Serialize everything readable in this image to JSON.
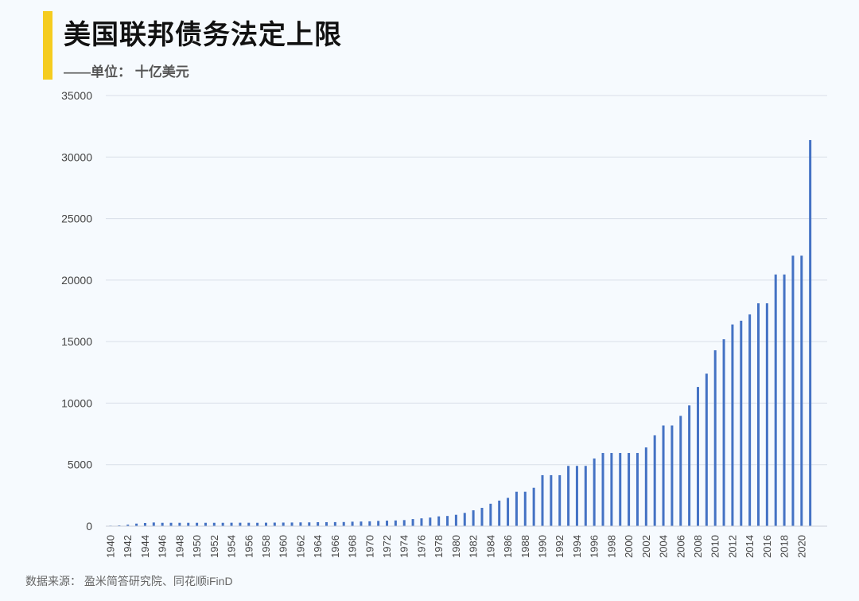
{
  "header": {
    "title": "美国联邦债务法定上限",
    "subtitle": "——单位： 十亿美元"
  },
  "footer": {
    "source": "数据来源： 盈米简答研究院、同花顺iFinD"
  },
  "colors": {
    "accent": "#f5cc1f",
    "bar": "#4472c4",
    "grid": "#d9dfe8"
  },
  "chart_data": {
    "type": "bar",
    "title": "美国联邦债务法定上限",
    "subtitle": "——单位： 十亿美元",
    "ylim": [
      0,
      35000
    ],
    "yticks": [
      0,
      5000,
      10000,
      15000,
      20000,
      25000,
      30000,
      35000
    ],
    "xticks": [
      "1940",
      "1942",
      "1944",
      "1946",
      "1948",
      "1950",
      "1952",
      "1954",
      "1956",
      "1958",
      "1960",
      "1962",
      "1964",
      "1966",
      "1968",
      "1970",
      "1972",
      "1974",
      "1976",
      "1978",
      "1980",
      "1982",
      "1984",
      "1986",
      "1988",
      "1990",
      "1992",
      "1994",
      "1996",
      "1998",
      "2000",
      "2002",
      "2004",
      "2006",
      "2008",
      "2010",
      "2012",
      "2014",
      "2016",
      "2018",
      "2020"
    ],
    "grid": true,
    "legend": "none",
    "categories": [
      "1940",
      "1941",
      "1942",
      "1943",
      "1944",
      "1945",
      "1946",
      "1947",
      "1948",
      "1949",
      "1950",
      "1951",
      "1952",
      "1953",
      "1954",
      "1955",
      "1956",
      "1957",
      "1958",
      "1959",
      "1960",
      "1961",
      "1962",
      "1963",
      "1964",
      "1965",
      "1966",
      "1967",
      "1968",
      "1969",
      "1970",
      "1971",
      "1972",
      "1973",
      "1974",
      "1975",
      "1976",
      "1977",
      "1978",
      "1979",
      "1980",
      "1981",
      "1982",
      "1983",
      "1984",
      "1985",
      "1986",
      "1987",
      "1988",
      "1989",
      "1990",
      "1991",
      "1992",
      "1993",
      "1994",
      "1995",
      "1996",
      "1997",
      "1998",
      "1999",
      "2000",
      "2001",
      "2002",
      "2003",
      "2004",
      "2005",
      "2006",
      "2007",
      "2008",
      "2009",
      "2010",
      "2011",
      "2012",
      "2013",
      "2014",
      "2015",
      "2016",
      "2017",
      "2018",
      "2019",
      "2020",
      "2021"
    ],
    "values": [
      45,
      65,
      125,
      210,
      260,
      300,
      275,
      275,
      275,
      275,
      275,
      275,
      275,
      275,
      281,
      281,
      278,
      275,
      283,
      290,
      293,
      298,
      308,
      309,
      324,
      324,
      330,
      336,
      365,
      377,
      395,
      430,
      450,
      465,
      495,
      577,
      636,
      700,
      798,
      830,
      925,
      1079,
      1290,
      1490,
      1823,
      2079,
      2300,
      2800,
      2800,
      3122,
      4145,
      4145,
      4145,
      4900,
      4900,
      4900,
      5500,
      5950,
      5950,
      5950,
      5950,
      5950,
      6400,
      7384,
      8184,
      8184,
      8965,
      9815,
      11315,
      12394,
      14294,
      15194,
      16394,
      16699,
      17212,
      18113,
      18113,
      20456,
      20456,
      21988,
      21988,
      31381
    ]
  }
}
